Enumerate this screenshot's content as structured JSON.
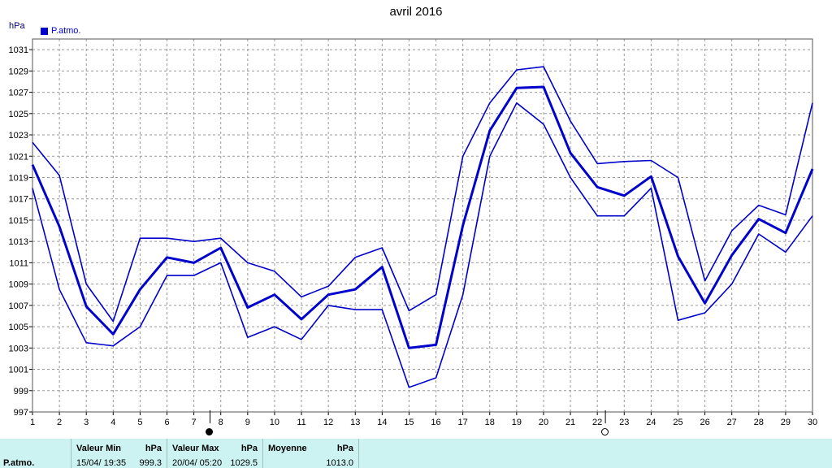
{
  "chart_data": {
    "type": "line",
    "title": "avril 2016",
    "ylabel": "hPa",
    "legend": [
      "P.atmo."
    ],
    "legend_position": "top-left",
    "grid": true,
    "ylim": [
      997,
      1032
    ],
    "yticks": [
      997,
      999,
      1001,
      1003,
      1005,
      1007,
      1009,
      1011,
      1013,
      1015,
      1017,
      1019,
      1021,
      1023,
      1025,
      1027,
      1029,
      1031
    ],
    "x": [
      1,
      2,
      3,
      4,
      5,
      6,
      7,
      8,
      9,
      10,
      11,
      12,
      13,
      14,
      15,
      16,
      17,
      18,
      19,
      20,
      21,
      22,
      23,
      24,
      25,
      26,
      27,
      28,
      29,
      30
    ],
    "series": [
      {
        "name": "P.atmo.",
        "role": "max",
        "values": [
          1022.3,
          1019.2,
          1009.0,
          1005.5,
          1013.3,
          1013.3,
          1013.0,
          1013.3,
          1011.0,
          1010.2,
          1007.8,
          1008.8,
          1011.5,
          1012.4,
          1006.5,
          1008.0,
          1021.0,
          1026.0,
          1029.1,
          1029.4,
          1024.3,
          1020.3,
          1020.5,
          1020.6,
          1019.0,
          1009.3,
          1014.0,
          1016.4,
          1015.5,
          1026.0
        ]
      },
      {
        "name": "P.atmo.",
        "role": "mean",
        "values": [
          1020.2,
          1014.4,
          1006.9,
          1004.3,
          1008.5,
          1011.5,
          1011.0,
          1012.4,
          1006.8,
          1008.0,
          1005.7,
          1008.0,
          1008.5,
          1010.6,
          1003.0,
          1003.3,
          1014.5,
          1023.4,
          1027.4,
          1027.5,
          1021.3,
          1018.1,
          1017.3,
          1019.1,
          1011.6,
          1007.2,
          1011.7,
          1015.1,
          1013.8,
          1019.8
        ]
      },
      {
        "name": "P.atmo.",
        "role": "min",
        "values": [
          1018.0,
          1008.5,
          1003.5,
          1003.2,
          1005.0,
          1009.8,
          1009.8,
          1011.0,
          1004.0,
          1005.0,
          1003.8,
          1007.0,
          1006.6,
          1006.6,
          999.3,
          1000.2,
          1008.0,
          1021.0,
          1026.0,
          1024.0,
          1019.0,
          1015.4,
          1015.4,
          1018.0,
          1005.6,
          1006.3,
          1009.0,
          1013.7,
          1012.0,
          1015.4
        ]
      }
    ],
    "colors": {
      "line": "#0000cc",
      "grid": "#999999",
      "table_bg": "#ccf2f2"
    }
  },
  "table": {
    "row_label": "P.atmo.",
    "min_header": "Valeur Min",
    "min_unit": "hPa",
    "min_date": "15/04/  19:35",
    "min_value": "999.3",
    "max_header": "Valeur Max",
    "max_unit": "hPa",
    "max_date": "20/04/  05:20",
    "max_value": "1029.5",
    "avg_header": "Moyenne",
    "avg_unit": "hPa",
    "avg_value": "1013.0"
  }
}
